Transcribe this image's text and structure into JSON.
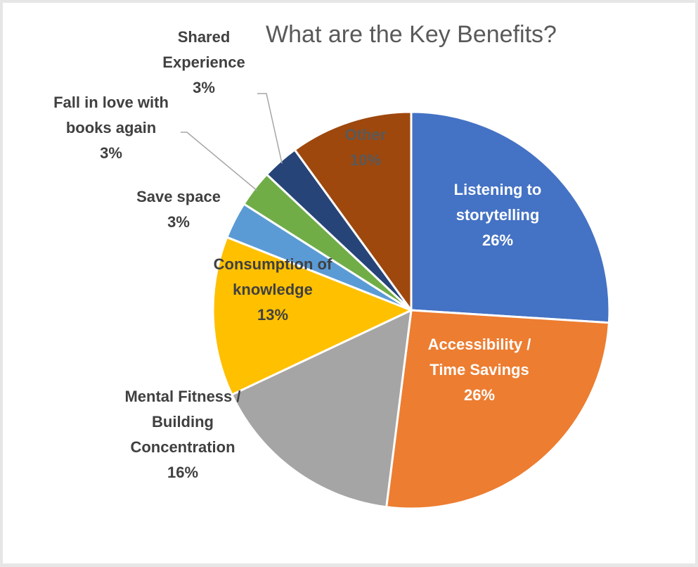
{
  "chart_data": {
    "type": "pie",
    "title": "What are the Key Benefits?",
    "slices": [
      {
        "label": "Listening to storytelling",
        "lines": [
          "Listening to",
          "storytelling",
          "26%"
        ],
        "value": 26,
        "color": "#4472c4",
        "label_color": "#ffffff",
        "label_position": "inside"
      },
      {
        "label": "Accessibility / Time Savings",
        "lines": [
          "Accessibility /",
          "Time Savings",
          "26%"
        ],
        "value": 26,
        "color": "#ed7d31",
        "label_color": "#ffffff",
        "label_position": "inside"
      },
      {
        "label": "Mental Fitness / Building Concentration",
        "lines": [
          "Mental Fitness /",
          "Building",
          "Concentration",
          "16%"
        ],
        "value": 16,
        "color": "#a5a5a5",
        "label_color": "#404040",
        "label_position": "outside"
      },
      {
        "label": "Consumption of knowledge",
        "lines": [
          "Consumption of",
          "knowledge",
          "13%"
        ],
        "value": 13,
        "color": "#ffc000",
        "label_color": "#404040",
        "label_position": "inside"
      },
      {
        "label": "Save space",
        "lines": [
          "Save space",
          "3%"
        ],
        "value": 3,
        "color": "#5b9bd5",
        "label_color": "#404040",
        "label_position": "outside"
      },
      {
        "label": "Fall in love with books again",
        "lines": [
          "Fall in love with",
          "books again",
          "3%"
        ],
        "value": 3,
        "color": "#70ad47",
        "label_color": "#404040",
        "label_position": "outside",
        "leader_line": true
      },
      {
        "label": "Shared Experience",
        "lines": [
          "Shared",
          "Experience",
          "3%"
        ],
        "value": 3,
        "color": "#264478",
        "label_color": "#404040",
        "label_position": "outside",
        "leader_line": true
      },
      {
        "label": "Other",
        "lines": [
          "Other",
          "10%"
        ],
        "value": 10,
        "color": "#9e480e",
        "label_color": "#595959",
        "label_position": "inside"
      }
    ],
    "start_angle": "12 o'clock",
    "direction": "clockwise",
    "legend": "none"
  }
}
